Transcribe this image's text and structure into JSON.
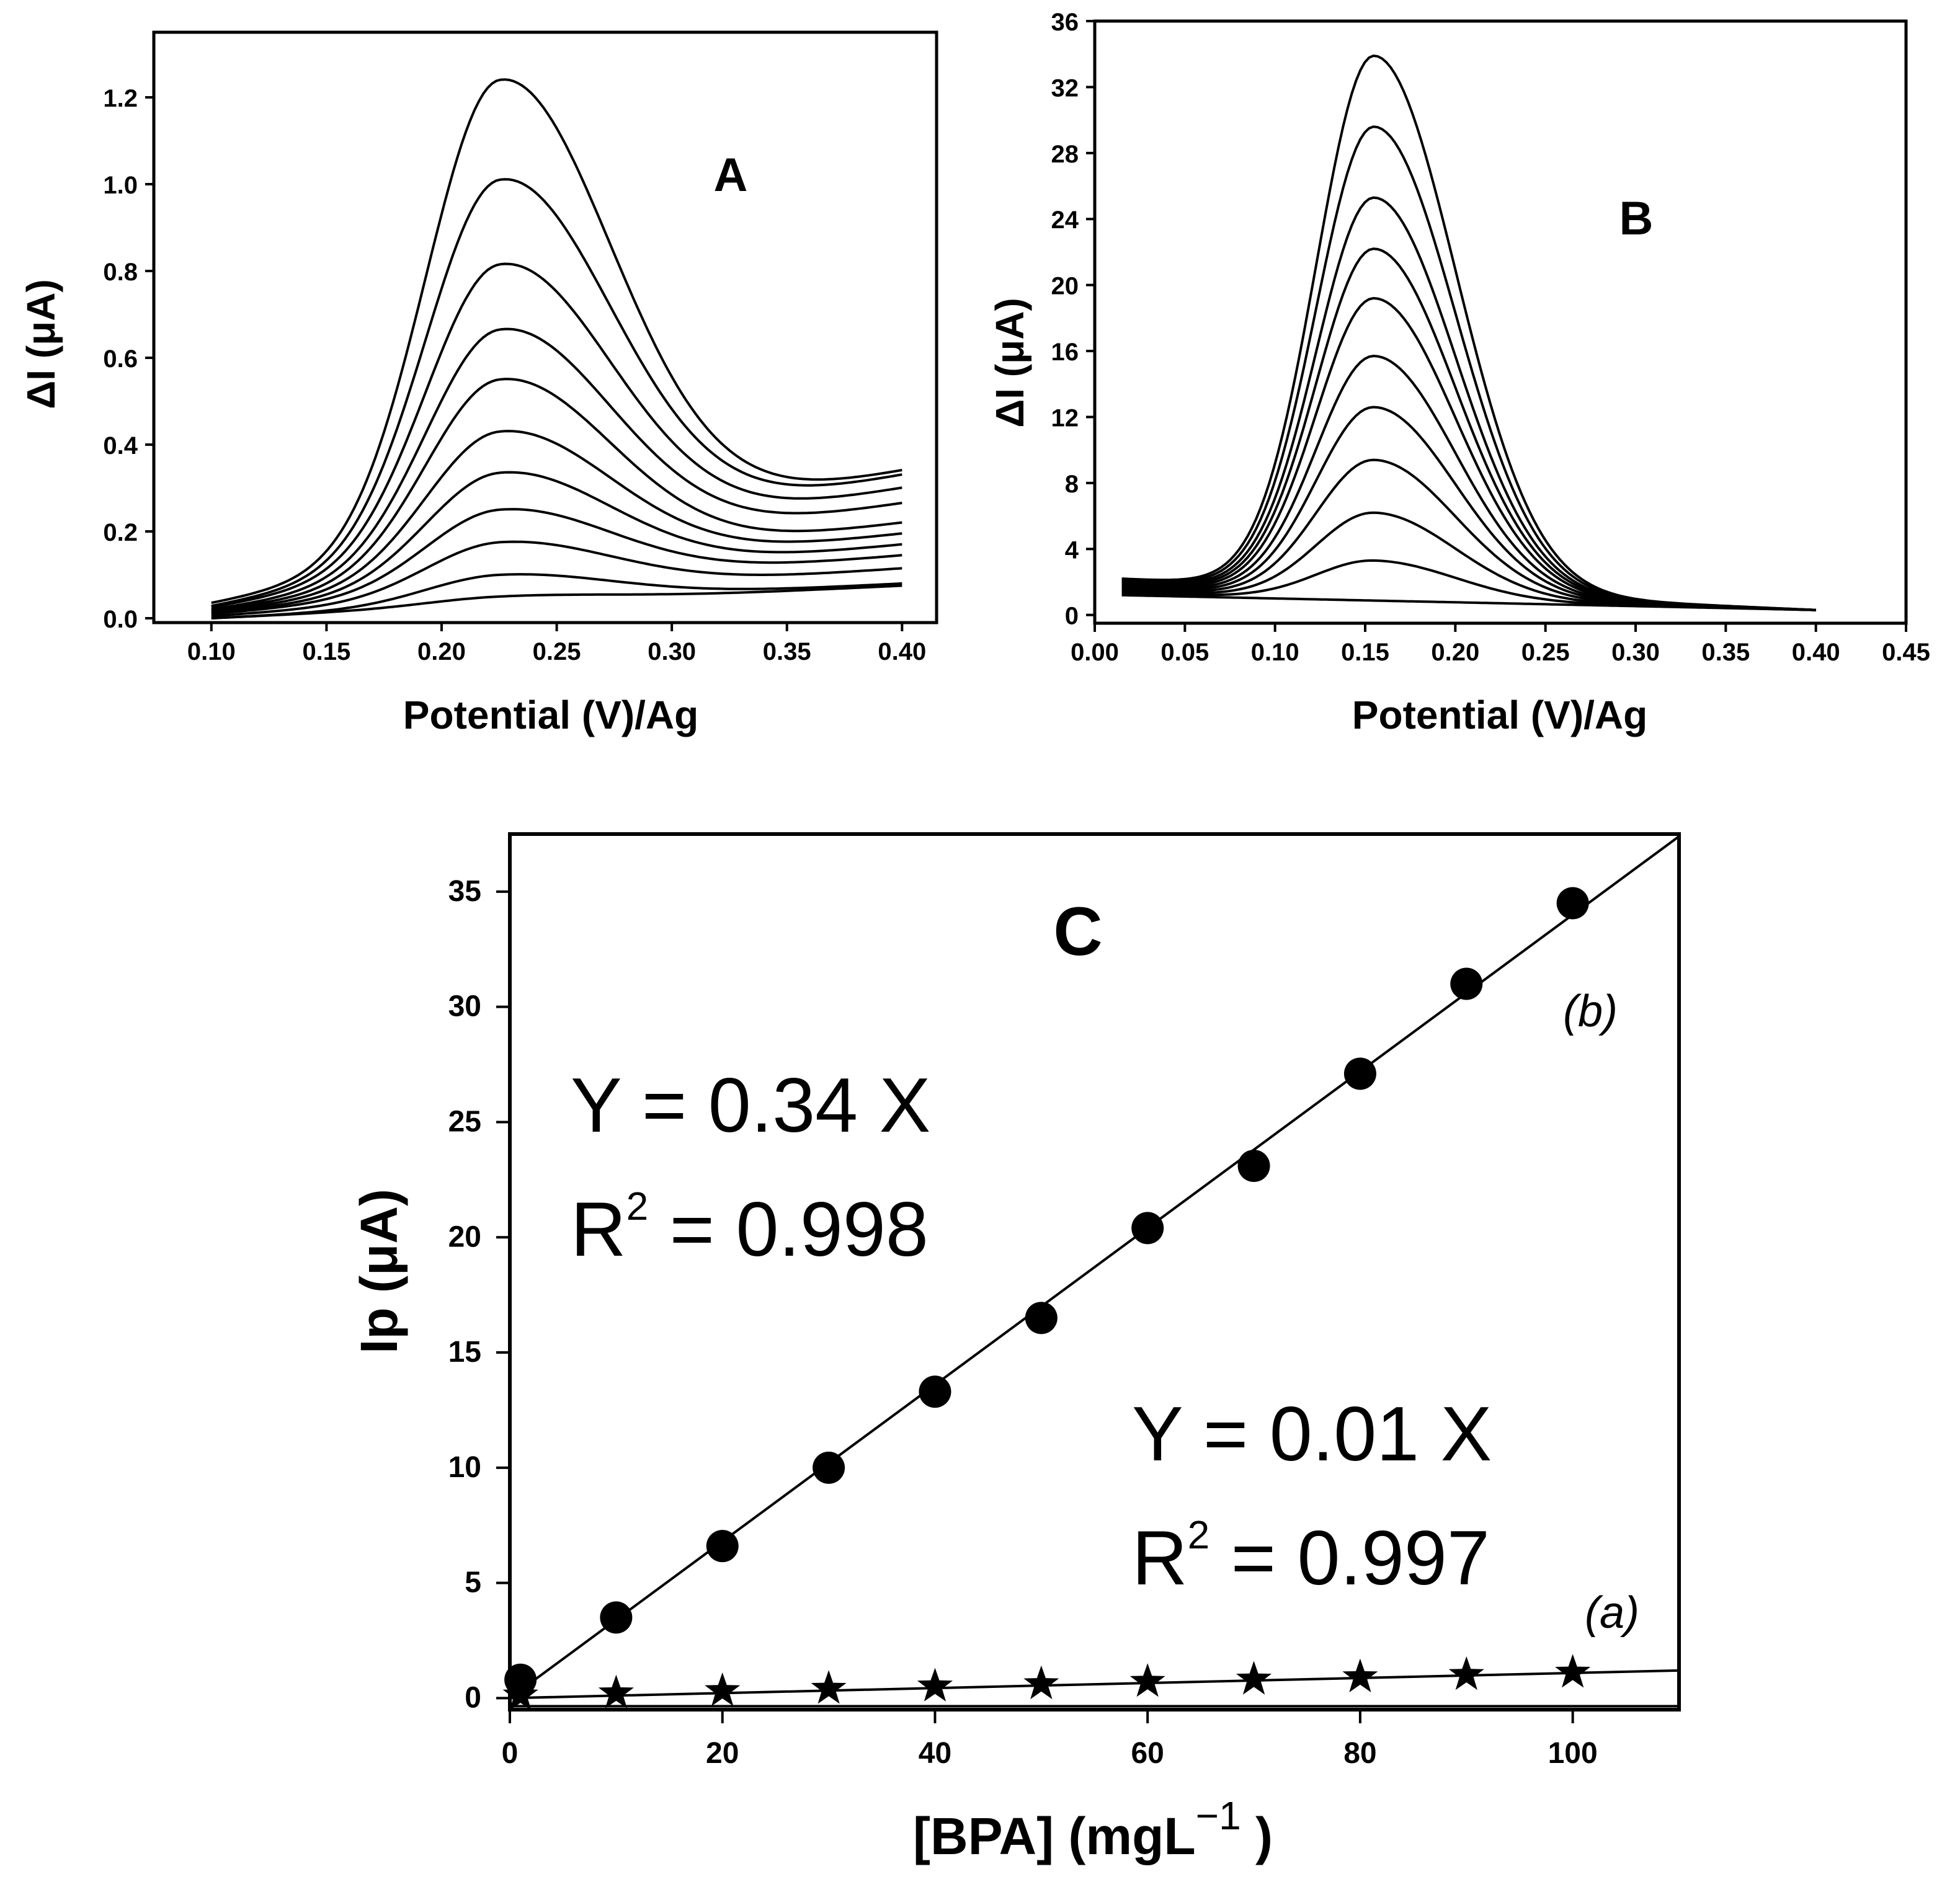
{
  "chart_data": [
    {
      "type": "line",
      "panel_label": "A",
      "xlabel": "Potential (V)/Ag",
      "ylabel": "ΔI (μA)",
      "xlim": [
        0.075,
        0.415
      ],
      "ylim": [
        -0.01,
        1.35
      ],
      "xticks": [
        0.1,
        0.15,
        0.2,
        0.25,
        0.3,
        0.35,
        0.4
      ],
      "yticks": [
        0.0,
        0.2,
        0.4,
        0.6,
        0.8,
        1.0,
        1.2
      ],
      "x_range": [
        0.1,
        0.4
      ],
      "peak_potential": 0.225,
      "series": [
        {
          "peak": 0.05,
          "end": 0.075,
          "start": 0.0
        },
        {
          "peak": 0.1,
          "end": 0.08,
          "start": 0.0
        },
        {
          "peak": 0.175,
          "end": 0.115,
          "start": 0.005
        },
        {
          "peak": 0.25,
          "end": 0.145,
          "start": 0.01
        },
        {
          "peak": 0.335,
          "end": 0.17,
          "start": 0.012
        },
        {
          "peak": 0.43,
          "end": 0.195,
          "start": 0.015
        },
        {
          "peak": 0.55,
          "end": 0.22,
          "start": 0.018
        },
        {
          "peak": 0.665,
          "end": 0.265,
          "start": 0.02
        },
        {
          "peak": 0.815,
          "end": 0.3,
          "start": 0.025
        },
        {
          "peak": 1.01,
          "end": 0.33,
          "start": 0.028
        },
        {
          "peak": 1.24,
          "end": 0.34,
          "start": 0.035
        }
      ]
    },
    {
      "type": "line",
      "panel_label": "B",
      "xlabel": "Potential (V)/Ag",
      "ylabel": "ΔI (μA)",
      "xlim": [
        0.0,
        0.45
      ],
      "ylim": [
        -0.5,
        36.0
      ],
      "xticks": [
        0.0,
        0.05,
        0.1,
        0.15,
        0.2,
        0.25,
        0.3,
        0.35,
        0.4,
        0.45
      ],
      "yticks": [
        0,
        4,
        8,
        12,
        16,
        20,
        24,
        28,
        32,
        36
      ],
      "x_range": [
        0.015,
        0.4
      ],
      "peak_potential": 0.155,
      "series": [
        {
          "peak": 0.5,
          "end": 0.3,
          "start": 1.2
        },
        {
          "peak": 3.3,
          "end": 0.3,
          "start": 1.3
        },
        {
          "peak": 6.2,
          "end": 0.3,
          "start": 1.4
        },
        {
          "peak": 9.4,
          "end": 0.3,
          "start": 1.5
        },
        {
          "peak": 12.6,
          "end": 0.3,
          "start": 1.6
        },
        {
          "peak": 15.7,
          "end": 0.3,
          "start": 1.7
        },
        {
          "peak": 19.2,
          "end": 0.3,
          "start": 1.8
        },
        {
          "peak": 22.2,
          "end": 0.3,
          "start": 1.9
        },
        {
          "peak": 25.3,
          "end": 0.3,
          "start": 2.0
        },
        {
          "peak": 29.6,
          "end": 0.3,
          "start": 2.1
        },
        {
          "peak": 33.9,
          "end": 0.3,
          "start": 2.2
        }
      ]
    },
    {
      "type": "scatter",
      "panel_label": "C",
      "xlabel": "[BPA] (mgL",
      "xlabel_sup": "−1",
      "xlabel_end": " )",
      "ylabel": "Ip (μA)",
      "xlim": [
        0,
        110
      ],
      "ylim": [
        -0.5,
        37.5
      ],
      "xticks": [
        0,
        20,
        40,
        60,
        80,
        100
      ],
      "yticks": [
        0,
        5,
        10,
        15,
        20,
        25,
        30,
        35
      ],
      "series": [
        {
          "name": "(b)",
          "marker": "circle",
          "x": [
            1,
            10,
            20,
            30,
            40,
            50,
            60,
            70,
            80,
            90,
            100
          ],
          "y": [
            0.8,
            3.5,
            6.6,
            10.0,
            13.3,
            16.5,
            20.4,
            23.1,
            27.1,
            31.0,
            34.5
          ],
          "fit_slope": 0.34
        },
        {
          "name": "(a)",
          "marker": "star",
          "x": [
            1,
            10,
            20,
            30,
            40,
            50,
            60,
            70,
            80,
            90,
            100
          ],
          "y": [
            0.01,
            0.1,
            0.2,
            0.3,
            0.4,
            0.5,
            0.6,
            0.7,
            0.8,
            0.9,
            1.0
          ],
          "fit_slope": 0.01
        }
      ],
      "annotations": {
        "b_eq": "Y = 0.34 X",
        "b_r2_prefix": "R",
        "b_r2_sup": "2",
        "b_r2_value": " = 0.998",
        "a_eq": "Y = 0.01 X",
        "a_r2_prefix": "R",
        "a_r2_sup": "2",
        "a_r2_value": " = 0.997"
      }
    }
  ]
}
